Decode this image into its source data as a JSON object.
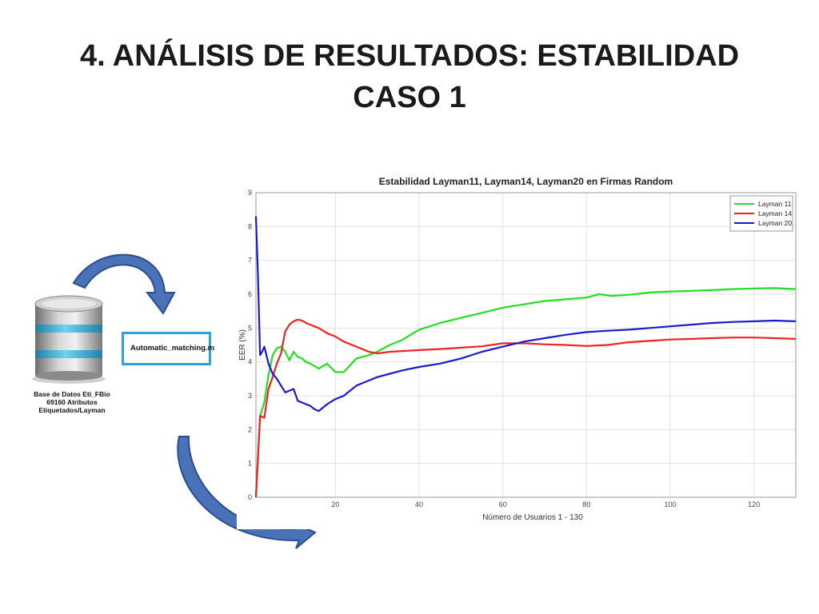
{
  "slide": {
    "title_line1": "4. ANÁLISIS DE RESULTADOS: ESTABILIDAD",
    "title_line2": "CASO 1"
  },
  "database": {
    "icon": "database-icon",
    "caption_line1": "Base de Datos Eti_FBio",
    "caption_line2": "69160 Atributos",
    "caption_line3": "Etiquetados/Layman"
  },
  "script": {
    "label": "Automatic_matching.m"
  },
  "arrows": [
    "curved-arrow-icon",
    "curved-arrow-icon"
  ],
  "chart_data": {
    "type": "line",
    "title": "Estabilidad Layman11, Layman14, Layman20 en Firmas Random",
    "xlabel": "Número de Usuarios 1 - 130",
    "ylabel": "EER (%)",
    "xlim": [
      1,
      130
    ],
    "ylim": [
      0,
      9
    ],
    "xticks": [
      20,
      40,
      60,
      80,
      100,
      120
    ],
    "yticks": [
      0,
      1,
      2,
      3,
      4,
      5,
      6,
      7,
      8,
      9
    ],
    "grid": true,
    "legend_position": "top-right",
    "series": [
      {
        "name": "Layman 11",
        "color": "#22dd22",
        "x": [
          1,
          2,
          3,
          4,
          5,
          6,
          7,
          8,
          9,
          10,
          11,
          12,
          13,
          14,
          16,
          18,
          20,
          22,
          25,
          28,
          30,
          33,
          36,
          40,
          45,
          50,
          55,
          60,
          65,
          70,
          75,
          80,
          83,
          86,
          90,
          95,
          100,
          105,
          110,
          115,
          120,
          125,
          130
        ],
        "y": [
          0,
          2.4,
          2.8,
          3.6,
          4.2,
          4.4,
          4.45,
          4.3,
          4.05,
          4.3,
          4.15,
          4.1,
          4.0,
          3.95,
          3.8,
          3.95,
          3.7,
          3.7,
          4.1,
          4.2,
          4.3,
          4.5,
          4.65,
          4.95,
          5.15,
          5.3,
          5.45,
          5.6,
          5.7,
          5.8,
          5.85,
          5.9,
          6.0,
          5.95,
          5.98,
          6.05,
          6.08,
          6.1,
          6.12,
          6.15,
          6.17,
          6.18,
          6.15
        ]
      },
      {
        "name": "Layman 14",
        "color": "#ee2222",
        "x": [
          1,
          2,
          3,
          4,
          5,
          6,
          7,
          8,
          9,
          10,
          11,
          12,
          13,
          14,
          16,
          18,
          20,
          22,
          25,
          28,
          30,
          33,
          36,
          40,
          45,
          50,
          55,
          60,
          65,
          70,
          75,
          80,
          85,
          90,
          95,
          100,
          105,
          110,
          115,
          120,
          125,
          130
        ],
        "y": [
          0,
          2.4,
          2.35,
          3.2,
          3.55,
          3.95,
          4.25,
          4.9,
          5.1,
          5.2,
          5.25,
          5.22,
          5.15,
          5.1,
          5.0,
          4.85,
          4.75,
          4.6,
          4.45,
          4.3,
          4.25,
          4.3,
          4.32,
          4.35,
          4.38,
          4.42,
          4.46,
          4.55,
          4.55,
          4.52,
          4.5,
          4.47,
          4.5,
          4.58,
          4.62,
          4.66,
          4.68,
          4.7,
          4.72,
          4.72,
          4.7,
          4.68
        ]
      },
      {
        "name": "Layman 20",
        "color": "#1a1acc",
        "x": [
          1,
          1.5,
          2,
          2.5,
          3,
          4,
          5,
          6,
          7,
          8,
          9,
          10,
          11,
          12,
          13,
          14,
          15,
          16,
          18,
          20,
          22,
          25,
          28,
          30,
          33,
          36,
          40,
          45,
          50,
          55,
          60,
          65,
          70,
          75,
          80,
          85,
          90,
          95,
          100,
          105,
          110,
          115,
          120,
          125,
          130
        ],
        "y": [
          8.3,
          6.5,
          4.2,
          4.3,
          4.45,
          3.95,
          3.65,
          3.5,
          3.3,
          3.1,
          3.15,
          3.2,
          2.85,
          2.8,
          2.75,
          2.7,
          2.6,
          2.55,
          2.75,
          2.9,
          3.0,
          3.3,
          3.45,
          3.55,
          3.65,
          3.75,
          3.85,
          3.95,
          4.1,
          4.3,
          4.45,
          4.6,
          4.7,
          4.8,
          4.88,
          4.92,
          4.95,
          5.0,
          5.05,
          5.1,
          5.15,
          5.18,
          5.2,
          5.22,
          5.2
        ]
      }
    ]
  }
}
